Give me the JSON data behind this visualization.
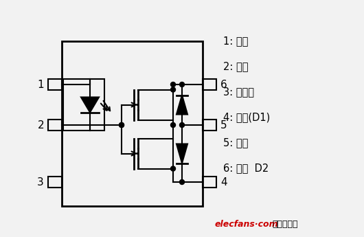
{
  "bg_color": "#f2f2f2",
  "line_color": "#000000",
  "text_color": "#000000",
  "red_color": "#cc0000",
  "descriptions": [
    "1: 陽極",
    "2: 陰極",
    "3: 不連接",
    "4: 耗電(D1)",
    "5: 電源",
    "6: 耗電  D2"
  ],
  "watermark_red": "elecfans·com",
  "watermark_black": "电子發燒友"
}
